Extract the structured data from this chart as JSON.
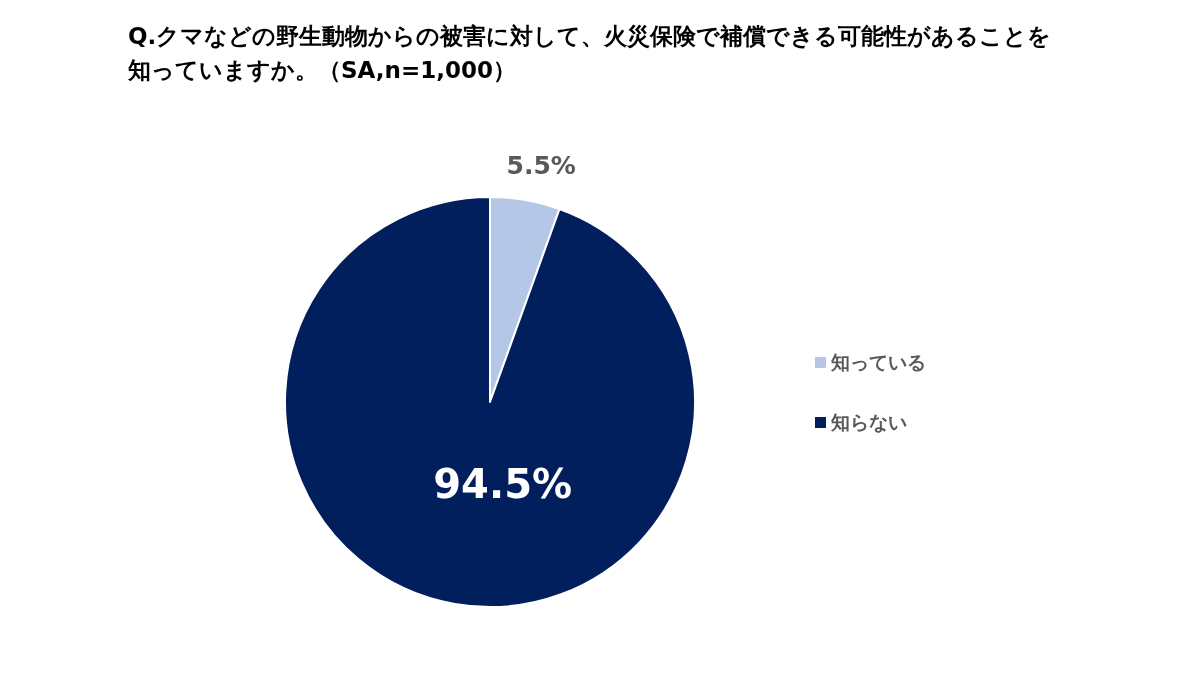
{
  "chart_data": {
    "type": "pie",
    "title": "Q.クマなどの野生動物からの被害に対して、火災保険で補償できる可能性があることを知っていますか。（SA,n=1,000）",
    "categories": [
      "知っている",
      "知らない"
    ],
    "values": [
      5.5,
      94.5
    ],
    "colors": [
      "#b4c7e7",
      "#001f5c"
    ],
    "value_labels": [
      "5.5%",
      "94.5%"
    ],
    "legend": "right"
  }
}
